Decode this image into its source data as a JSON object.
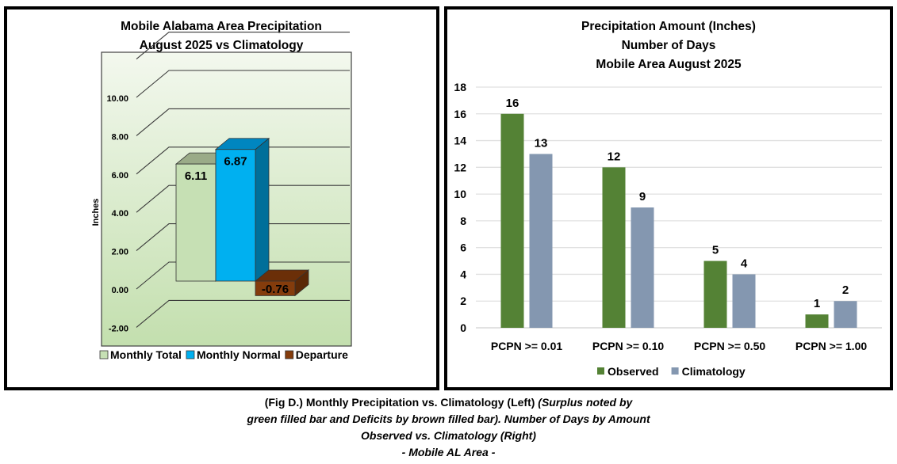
{
  "chart_data": [
    {
      "type": "bar",
      "style": "3d-column",
      "title": [
        "Mobile Alabama Area Precipitation",
        "August 2025 vs Climatology"
      ],
      "ylabel": "Inches",
      "xlabel": "",
      "ylim": [
        -2,
        12
      ],
      "yticks": [
        "-2.00",
        "0.00",
        "2.00",
        "4.00",
        "6.00",
        "8.00",
        "10.00"
      ],
      "grid": true,
      "legend_position": "bottom",
      "series": [
        {
          "name": "Monthly Total",
          "value": 6.11,
          "label": "6.11",
          "color": "#c6e0b4",
          "top_color": "#9aab88",
          "side_color": "#a9c193"
        },
        {
          "name": "Monthly Normal",
          "value": 6.87,
          "label": "6.87",
          "color": "#00b0f0",
          "top_color": "#0086c0",
          "side_color": "#006f9a"
        },
        {
          "name": "Departure",
          "value": -0.76,
          "label": "-0.76",
          "color": "#843c0c",
          "top_color": "#6b2f08",
          "side_color": "#5a2806"
        }
      ],
      "background": {
        "top": "#f3f8ee",
        "bottom": "#c3dfae"
      }
    },
    {
      "type": "bar",
      "title": [
        "Precipitation Amount (Inches)",
        "Number of Days",
        "Mobile Area August 2025"
      ],
      "xlabel": "",
      "ylabel": "",
      "ylim": [
        0,
        18
      ],
      "yticks": [
        0,
        2,
        4,
        6,
        8,
        10,
        12,
        14,
        16,
        18
      ],
      "grid": true,
      "legend_position": "bottom",
      "categories": [
        "PCPN >= 0.01",
        "PCPN >= 0.10",
        "PCPN >= 0.50",
        "PCPN >= 1.00"
      ],
      "series": [
        {
          "name": "Observed",
          "values": [
            16,
            12,
            5,
            1
          ],
          "color": "#548235"
        },
        {
          "name": "Climatology",
          "values": [
            13,
            9,
            4,
            2
          ],
          "color": "#8497b0"
        }
      ]
    }
  ],
  "caption": {
    "line1_normal": "(Fig D.) Monthly Precipitation vs. Climatology (Left) ",
    "line1_italic": "(Surplus noted by",
    "line2_italic": "green filled bar and Deficits by brown filled bar). Number of Days by Amount",
    "line3_italic": "Observed vs. Climatology (Right)",
    "line4_italic": "- Mobile AL Area -"
  }
}
